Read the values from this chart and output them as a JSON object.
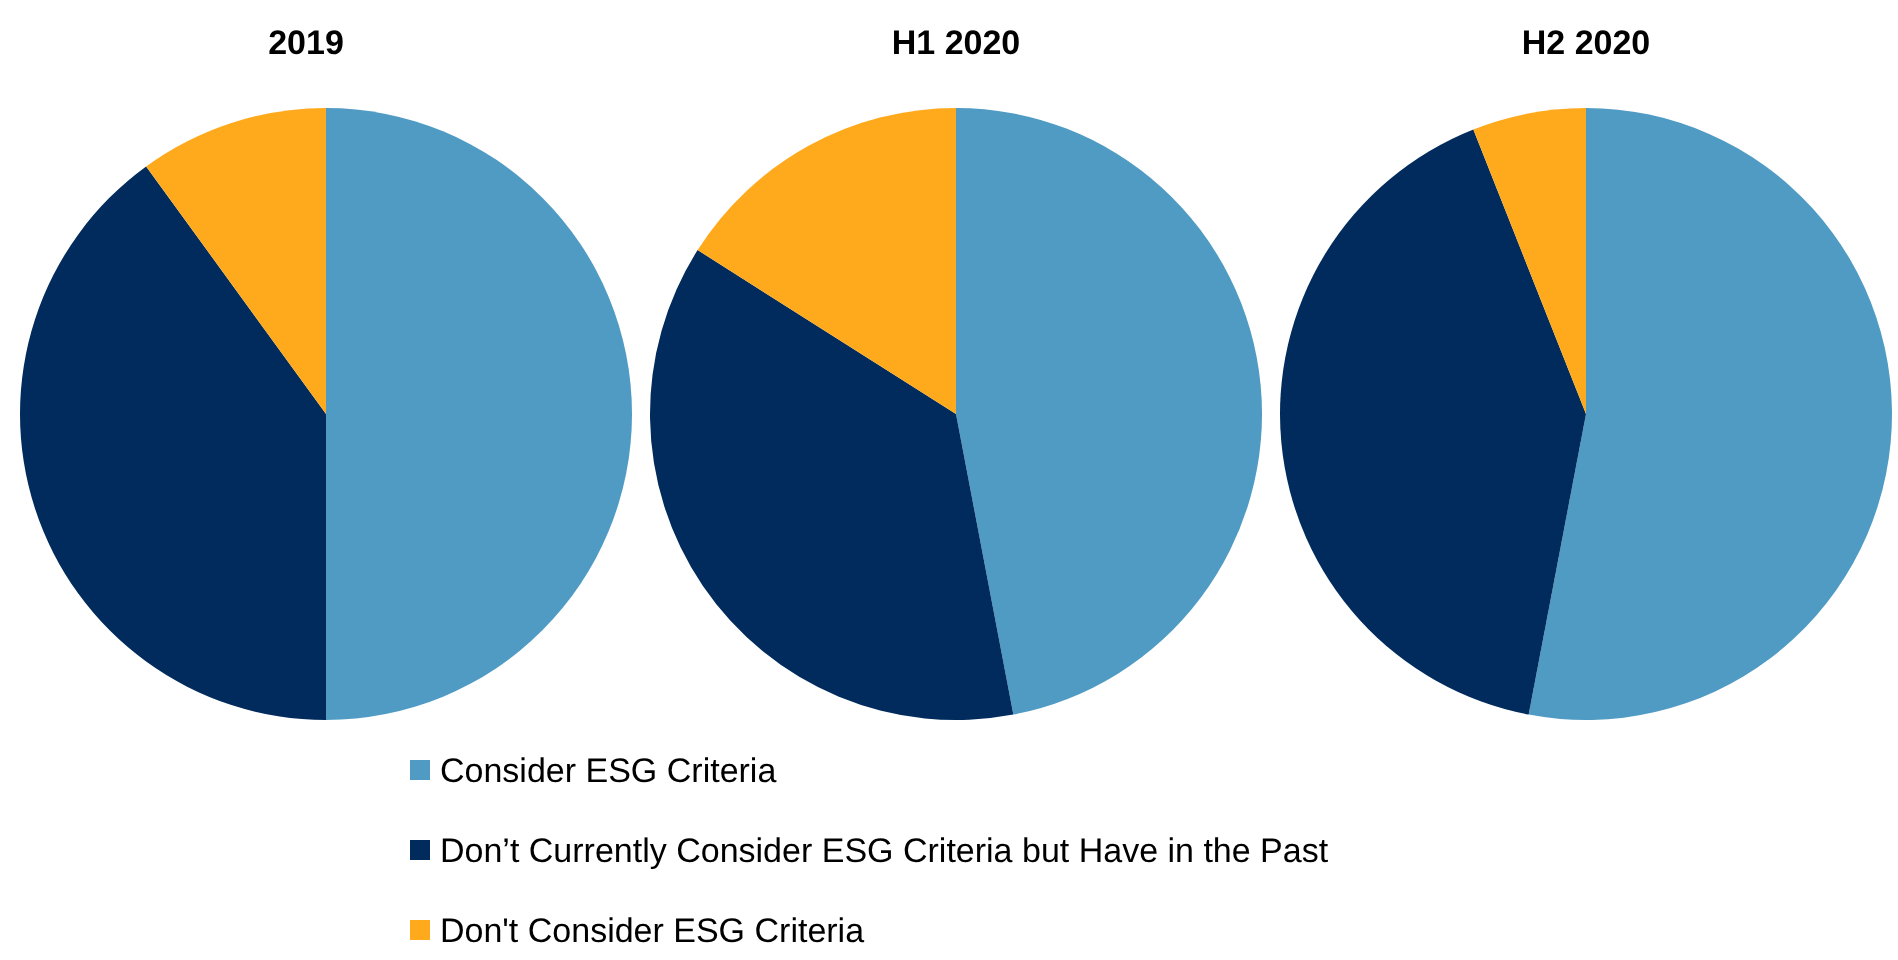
{
  "chart_data": [
    {
      "type": "pie",
      "title": "2019",
      "categories": [
        null,
        null,
        null
      ],
      "values": [
        50,
        40,
        10
      ],
      "colors": [
        "#4f9bc4",
        "#002b5c",
        "#ffaa1c"
      ],
      "legend": false
    },
    {
      "type": "pie",
      "title": "H1 2020",
      "categories": [
        "Consider ESG Criteria",
        "Don’t Currently Consider ESG Criteria but Have in the Past",
        "Don't Consider ESG Criteria"
      ],
      "values": [
        47,
        37,
        16
      ],
      "colors": [
        "#4f9bc4",
        "#002b5c",
        "#ffaa1c"
      ],
      "legend": "bottom"
    },
    {
      "type": "pie",
      "title": "H2 2020",
      "categories": [
        null,
        null,
        null
      ],
      "values": [
        53,
        41,
        6
      ],
      "colors": [
        "#4f9bc4",
        "#002b5c",
        "#ffaa1c"
      ],
      "legend": false
    }
  ]
}
